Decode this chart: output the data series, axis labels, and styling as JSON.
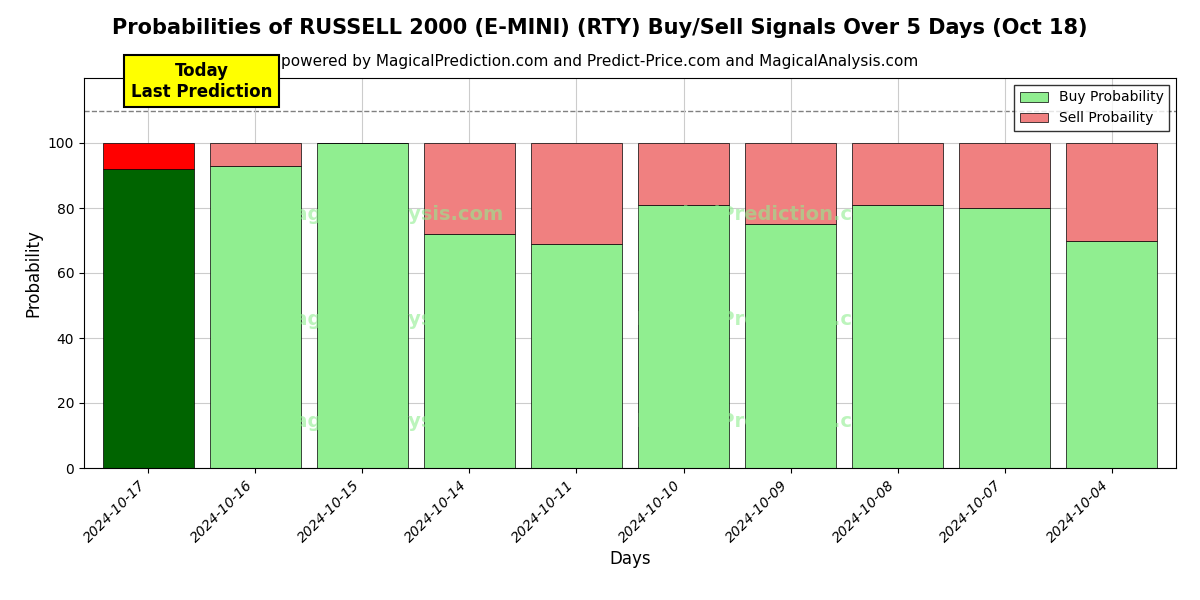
{
  "title": "Probabilities of RUSSELL 2000 (E-MINI) (RTY) Buy/Sell Signals Over 5 Days (Oct 18)",
  "subtitle": "powered by MagicalPrediction.com and Predict-Price.com and MagicalAnalysis.com",
  "xlabel": "Days",
  "ylabel": "Probability",
  "dates": [
    "2024-10-17",
    "2024-10-16",
    "2024-10-15",
    "2024-10-14",
    "2024-10-11",
    "2024-10-10",
    "2024-10-09",
    "2024-10-08",
    "2024-10-07",
    "2024-10-04"
  ],
  "buy_probs": [
    92,
    93,
    100,
    72,
    69,
    81,
    75,
    81,
    80,
    70
  ],
  "sell_probs": [
    8,
    7,
    0,
    28,
    31,
    19,
    25,
    19,
    20,
    30
  ],
  "today_bar_buy_color": "#006400",
  "today_bar_sell_color": "#FF0000",
  "regular_bar_buy_color": "#90EE90",
  "regular_bar_sell_color": "#F08080",
  "bar_edge_color": "#000000",
  "today_annotation_text": "Today\nLast Prediction",
  "today_annotation_bg": "#FFFF00",
  "dashed_line_y": 110,
  "ylim": [
    0,
    120
  ],
  "yticks": [
    0,
    20,
    40,
    60,
    80,
    100
  ],
  "legend_buy_label": "Buy Probability",
  "legend_sell_label": "Sell Probaility",
  "background_color": "#ffffff",
  "grid_color": "#cccccc",
  "title_fontsize": 15,
  "subtitle_fontsize": 11,
  "axis_label_fontsize": 12,
  "bar_width": 0.85
}
